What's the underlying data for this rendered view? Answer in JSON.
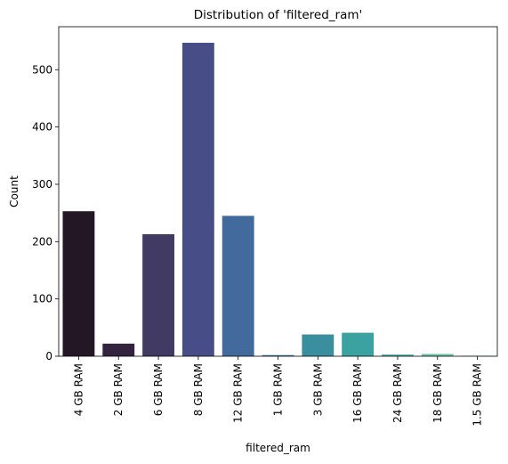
{
  "chart_data": {
    "type": "bar",
    "title": "Distribution of 'filtered_ram'",
    "xlabel": "filtered_ram",
    "ylabel": "Count",
    "ylim": [
      0,
      575
    ],
    "yticks": [
      0,
      100,
      200,
      300,
      400,
      500
    ],
    "grid": false,
    "legend": "none",
    "categories": [
      "4 GB RAM",
      "2 GB RAM",
      "6 GB RAM",
      "8 GB RAM",
      "12 GB RAM",
      "1 GB RAM",
      "3 GB RAM",
      "16 GB RAM",
      "24 GB RAM",
      "18 GB RAM",
      "1.5 GB RAM"
    ],
    "values": [
      253,
      22,
      213,
      547,
      245,
      2,
      38,
      41,
      3,
      4,
      1
    ],
    "colors": [
      "#231726",
      "#33233e",
      "#413a62",
      "#474d86",
      "#426a9c",
      "#3b79a0",
      "#3a8f9f",
      "#3ba2a1",
      "#47b0a2",
      "#6fc5a7",
      "#a3dab9"
    ]
  }
}
